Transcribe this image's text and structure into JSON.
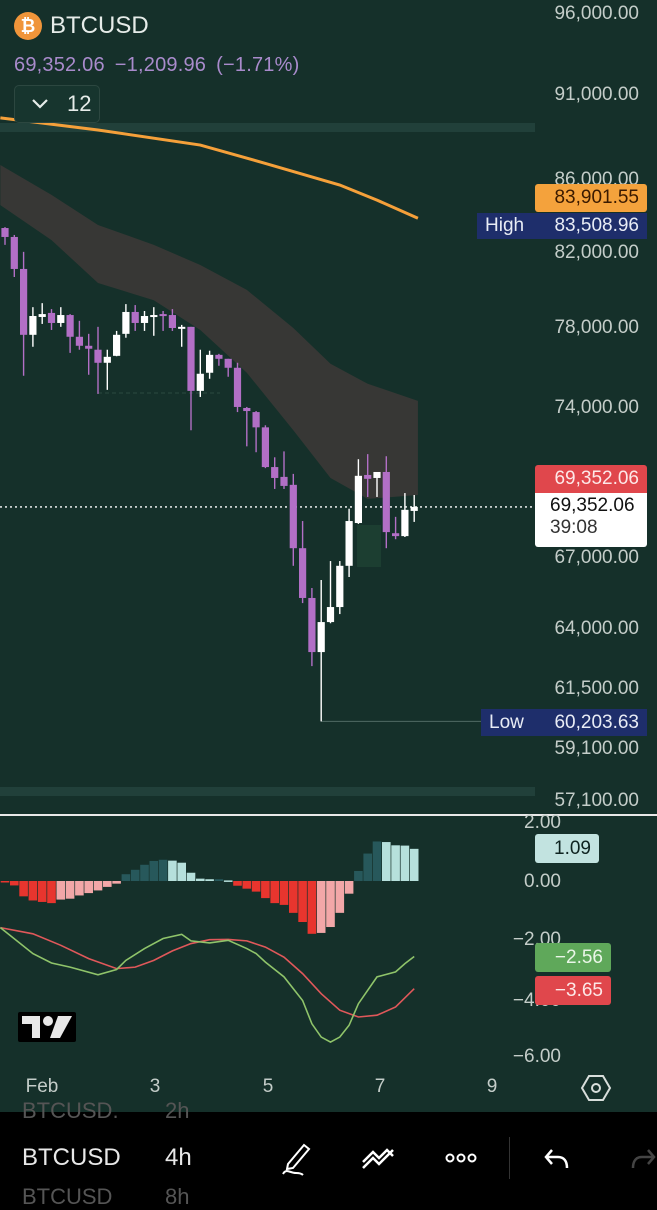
{
  "header": {
    "symbol": "BTCUSD",
    "logo_icon": "bitcoin-icon",
    "last_price": "69,352.06",
    "change": "−1,209.96",
    "change_pct": "(−1.71%)",
    "indicators_count": "12"
  },
  "price_axis": {
    "scale": "log",
    "ylim": [
      57100,
      96000
    ],
    "ticks": [
      "96,000.00",
      "91,000.00",
      "86,000.00",
      "82,000.00",
      "78,000.00",
      "74,000.00",
      "67,000.00",
      "64,000.00",
      "61,500.00",
      "59,100.00",
      "57,100.00"
    ],
    "tick_values": [
      96000,
      91000,
      86000,
      82000,
      78000,
      74000,
      67000,
      64000,
      61500,
      59100,
      57100
    ]
  },
  "labels": {
    "ma_value": "83,901.55",
    "high_label": "High",
    "high_value": "83,508.96",
    "last_red": "69,352.06",
    "last_white": "69,352.06",
    "countdown": "39:08",
    "low_label": "Low",
    "low_value": "60,203.63"
  },
  "colors": {
    "background": "#15302a",
    "up_candle": "#ffffff",
    "down_candle": "#b26fc6",
    "ma_line": "#f5a03a",
    "band": "#3b3936",
    "macd_line": "#8fc46a",
    "signal_line": "#e0585a",
    "hist_neg_strong": "#e8352e",
    "hist_neg_weak": "#f2a7a8",
    "hist_pos_strong": "#27585b",
    "hist_pos_weak": "#b6e0dc",
    "high_low_tag": "#1e2e6b"
  },
  "chart_data": [
    {
      "type": "candlestick",
      "title": "BTCUSD 4h",
      "ohlc": [
        [
          83360,
          83410,
          82440,
          82870
        ],
        [
          82870,
          82980,
          80710,
          81140
        ],
        [
          81140,
          82060,
          75620,
          77690
        ],
        [
          77690,
          79120,
          77080,
          78660
        ],
        [
          78610,
          79330,
          78250,
          78760
        ],
        [
          78820,
          79020,
          77940,
          78300
        ],
        [
          78300,
          79120,
          78100,
          78710
        ],
        [
          78710,
          78760,
          76770,
          77590
        ],
        [
          77590,
          78410,
          76930,
          77130
        ],
        [
          77130,
          77740,
          75670,
          76980
        ],
        [
          76930,
          78100,
          74720,
          76270
        ],
        [
          76270,
          76930,
          74920,
          76570
        ],
        [
          76620,
          77890,
          76600,
          77690
        ],
        [
          77740,
          79280,
          77540,
          78870
        ],
        [
          78870,
          79230,
          77890,
          78300
        ],
        [
          78300,
          78920,
          77890,
          78660
        ],
        [
          78710,
          79120,
          77640,
          78710
        ],
        [
          78760,
          78920,
          77890,
          78710
        ],
        [
          78710,
          79020,
          77890,
          78040
        ],
        [
          78100,
          78200,
          77080,
          78100
        ],
        [
          78100,
          78100,
          72950,
          74870
        ],
        [
          74870,
          76930,
          74570,
          75720
        ],
        [
          75770,
          76880,
          75470,
          76670
        ],
        [
          76670,
          76720,
          76120,
          76470
        ],
        [
          76470,
          76470,
          75570,
          76020
        ],
        [
          76020,
          76270,
          73830,
          74080
        ],
        [
          74030,
          74080,
          72180,
          73880
        ],
        [
          73830,
          73880,
          71900,
          73090
        ],
        [
          73090,
          73190,
          71150,
          71200
        ],
        [
          71200,
          71660,
          70180,
          70690
        ],
        [
          70740,
          71940,
          70180,
          70320
        ],
        [
          70370,
          70880,
          66710,
          67490
        ],
        [
          67490,
          68710,
          65090,
          65310
        ],
        [
          65310,
          65740,
          62440,
          63020
        ],
        [
          63020,
          66090,
          60204,
          64280
        ],
        [
          64280,
          66920,
          64230,
          64920
        ],
        [
          64920,
          66920,
          64620,
          66710
        ],
        [
          66710,
          69270,
          66220,
          68710
        ],
        [
          68620,
          71570,
          68580,
          70790
        ],
        [
          70830,
          71810,
          69810,
          70650
        ],
        [
          70690,
          70880,
          69810,
          70970
        ],
        [
          70970,
          71710,
          67490,
          68210
        ],
        [
          68160,
          68900,
          67890,
          68030
        ],
        [
          68030,
          69990,
          67990,
          69220
        ],
        [
          69170,
          69900,
          68670,
          69352.06
        ]
      ],
      "ma": [
        [
          -0.5,
          89640
        ],
        [
          10,
          88930
        ],
        [
          21,
          88050
        ],
        [
          28,
          86990
        ],
        [
          36,
          85760
        ],
        [
          40,
          84910
        ],
        [
          44.4,
          83901.55
        ]
      ],
      "band": [
        [
          -0.5,
          86900,
          84630
        ],
        [
          5,
          85200,
          82700
        ],
        [
          10,
          83530,
          80390
        ],
        [
          16,
          82440,
          79480
        ],
        [
          21,
          81350,
          77940
        ],
        [
          26,
          80030,
          75770
        ],
        [
          31,
          78040,
          72950
        ],
        [
          35,
          76220,
          70690
        ],
        [
          39,
          75220,
          69720
        ],
        [
          44.4,
          74380,
          69900
        ]
      ],
      "high": 83508.96,
      "low": 60203.63,
      "last": 69352.06
    },
    {
      "type": "bar+line",
      "ylim": [
        -6,
        2
      ],
      "ticks": [
        "2.00",
        "0.00",
        "−2.00",
        "−4.00",
        "−6.00"
      ],
      "tick_values": [
        2,
        0,
        -2,
        -4,
        -6
      ],
      "histogram": [
        -0.02,
        -0.15,
        -0.52,
        -0.66,
        -0.71,
        -0.75,
        -0.63,
        -0.6,
        -0.49,
        -0.41,
        -0.32,
        -0.2,
        -0.09,
        0.23,
        0.38,
        0.55,
        0.68,
        0.72,
        0.69,
        0.62,
        0.28,
        0.08,
        0.06,
        0.06,
        0.02,
        -0.16,
        -0.26,
        -0.36,
        -0.58,
        -0.75,
        -0.81,
        -1.08,
        -1.39,
        -1.79,
        -1.76,
        -1.56,
        -1.08,
        -0.43,
        0.34,
        0.93,
        1.34,
        1.32,
        1.21,
        1.2,
        1.09
      ],
      "macd": [
        [
          -0.5,
          -1.58
        ],
        [
          3,
          -2.46
        ],
        [
          5,
          -2.78
        ],
        [
          7,
          -2.92
        ],
        [
          10,
          -3.18
        ],
        [
          12,
          -3.0
        ],
        [
          13,
          -2.69
        ],
        [
          15,
          -2.29
        ],
        [
          17,
          -1.95
        ],
        [
          19,
          -1.81
        ],
        [
          20,
          -2.03
        ],
        [
          22,
          -2.1
        ],
        [
          24,
          -2.01
        ],
        [
          26,
          -2.29
        ],
        [
          27,
          -2.46
        ],
        [
          28,
          -2.75
        ],
        [
          30,
          -3.25
        ],
        [
          32,
          -4.05
        ],
        [
          33,
          -4.84
        ],
        [
          34,
          -5.29
        ],
        [
          35,
          -5.46
        ],
        [
          36,
          -5.29
        ],
        [
          37,
          -4.89
        ],
        [
          38,
          -4.16
        ],
        [
          40,
          -3.25
        ],
        [
          42,
          -3.08
        ],
        [
          43,
          -2.8
        ],
        [
          44,
          -2.56
        ]
      ],
      "signal": [
        [
          -0.5,
          -1.58
        ],
        [
          3,
          -1.79
        ],
        [
          6,
          -2.18
        ],
        [
          9,
          -2.63
        ],
        [
          12,
          -2.97
        ],
        [
          14,
          -2.92
        ],
        [
          16,
          -2.69
        ],
        [
          18,
          -2.37
        ],
        [
          20,
          -2.12
        ],
        [
          22,
          -1.99
        ],
        [
          24,
          -1.98
        ],
        [
          26,
          -2.03
        ],
        [
          28,
          -2.24
        ],
        [
          30,
          -2.58
        ],
        [
          32,
          -3.14
        ],
        [
          34,
          -3.82
        ],
        [
          36,
          -4.38
        ],
        [
          38,
          -4.61
        ],
        [
          40,
          -4.55
        ],
        [
          42,
          -4.27
        ],
        [
          44,
          -3.65
        ]
      ],
      "hist_label": "1.09",
      "macd_label": "−2.56",
      "signal_label": "−3.65"
    }
  ],
  "x_axis": {
    "ticks": [
      "Feb",
      "3",
      "5",
      "7",
      "9"
    ],
    "settings_icon": "hexagon-settings-icon"
  },
  "toolbar": {
    "picker_prev": "BTCUSD.",
    "picker_prev_tf": "2h",
    "symbol": "BTCUSD",
    "timeframe": "4h",
    "picker_next": "BTCUSD",
    "picker_next_tf": "8h",
    "icons": [
      "draw-pencil-icon",
      "line-tools-icon",
      "more-icon",
      "undo-icon",
      "redo-icon"
    ]
  }
}
